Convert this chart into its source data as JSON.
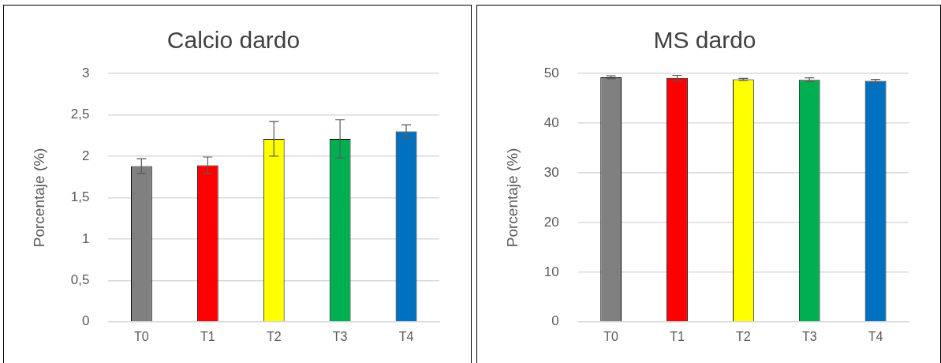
{
  "chart_data": [
    {
      "type": "bar",
      "title": "Calcio dardo",
      "ylabel": "Porcentaje (%)",
      "categories": [
        "T0",
        "T1",
        "T2",
        "T3",
        "T4"
      ],
      "values": [
        1.88,
        1.89,
        2.21,
        2.21,
        2.3
      ],
      "errors": [
        0.09,
        0.1,
        0.21,
        0.23,
        0.08
      ],
      "colors": [
        "#808080",
        "#ff0000",
        "#ffff00",
        "#00b050",
        "#0070c0"
      ],
      "ylim": [
        0,
        3
      ],
      "yticks": [
        0,
        {
          "value": 0.5,
          "label": "0,5"
        },
        1,
        {
          "value": 1.5,
          "label": "1,5"
        },
        2,
        {
          "value": 2.5,
          "label": "2,5"
        },
        3
      ],
      "grid": "y",
      "legend": false
    },
    {
      "type": "bar",
      "title": "MS dardo",
      "ylabel": "Porcentaje (%)",
      "categories": [
        "T0",
        "T1",
        "T2",
        "T3",
        "T4"
      ],
      "values": [
        49.2,
        49.1,
        48.8,
        48.7,
        48.5
      ],
      "errors": [
        0.3,
        0.5,
        0.2,
        0.4,
        0.3
      ],
      "colors": [
        "#808080",
        "#ff0000",
        "#ffff00",
        "#00b050",
        "#0070c0"
      ],
      "ylim": [
        0,
        50
      ],
      "yticks": [
        0,
        10,
        20,
        30,
        40,
        50
      ],
      "grid": "y",
      "legend": false
    }
  ]
}
